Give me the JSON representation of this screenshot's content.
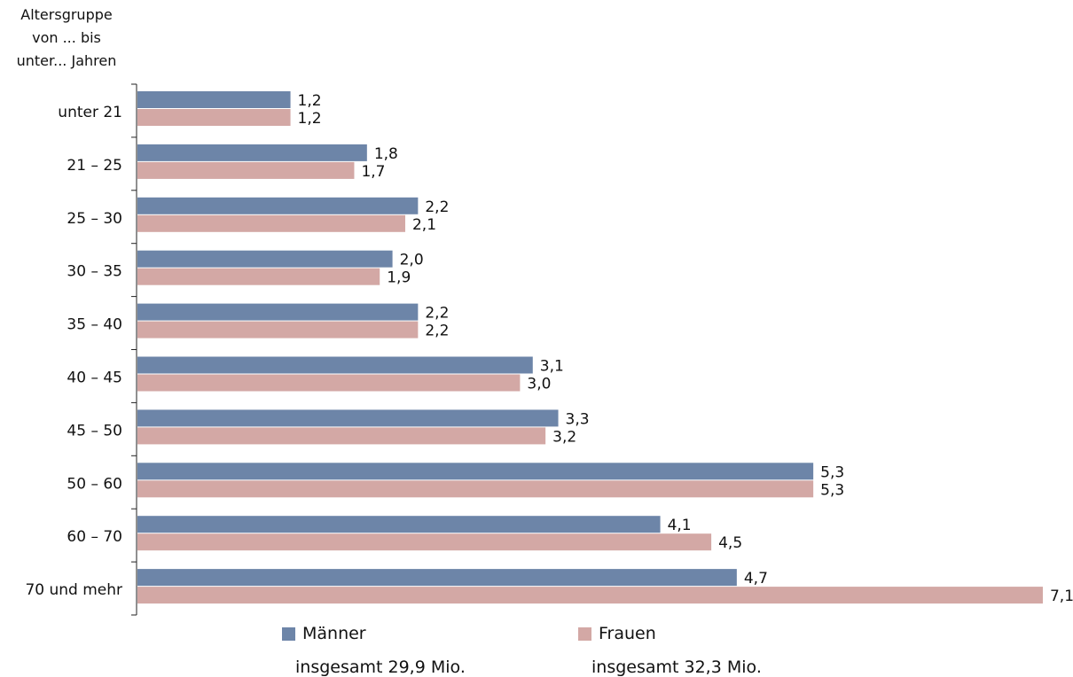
{
  "chart_data": {
    "type": "bar",
    "orientation": "horizontal",
    "ylabel_lines": [
      "Altersgruppe",
      "von ... bis",
      "unter... Jahren"
    ],
    "categories": [
      "unter 21",
      "21  –  25",
      "25  –  30",
      "30  –  35",
      "35  –  40",
      "40  –  45",
      "45  –  50",
      "50  –  60",
      "60  –  70",
      "70 und mehr"
    ],
    "series": [
      {
        "name": "Männer",
        "color": "#6d85a8",
        "values": [
          1.2,
          1.8,
          2.2,
          2.0,
          2.2,
          3.1,
          3.3,
          5.3,
          4.1,
          4.7
        ],
        "labels": [
          "1,2",
          "1,8",
          "2,2",
          "2,0",
          "2,2",
          "3,1",
          "3,3",
          "5,3",
          "4,1",
          "4,7"
        ]
      },
      {
        "name": "Frauen",
        "color": "#d3a8a5",
        "values": [
          1.2,
          1.7,
          2.1,
          1.9,
          2.2,
          3.0,
          3.2,
          5.3,
          4.5,
          7.1
        ],
        "labels": [
          "1,2",
          "1,7",
          "2,1",
          "1,9",
          "2,2",
          "3,0",
          "3,2",
          "5,3",
          "4,5",
          "7,1"
        ]
      }
    ],
    "xlim": [
      0,
      7.1
    ],
    "grid": false
  },
  "legend": {
    "men": {
      "label": "Männer",
      "total": "insgesamt 29,9 Mio."
    },
    "women": {
      "label": "Frauen",
      "total": "insgesamt 32,3 Mio."
    }
  }
}
